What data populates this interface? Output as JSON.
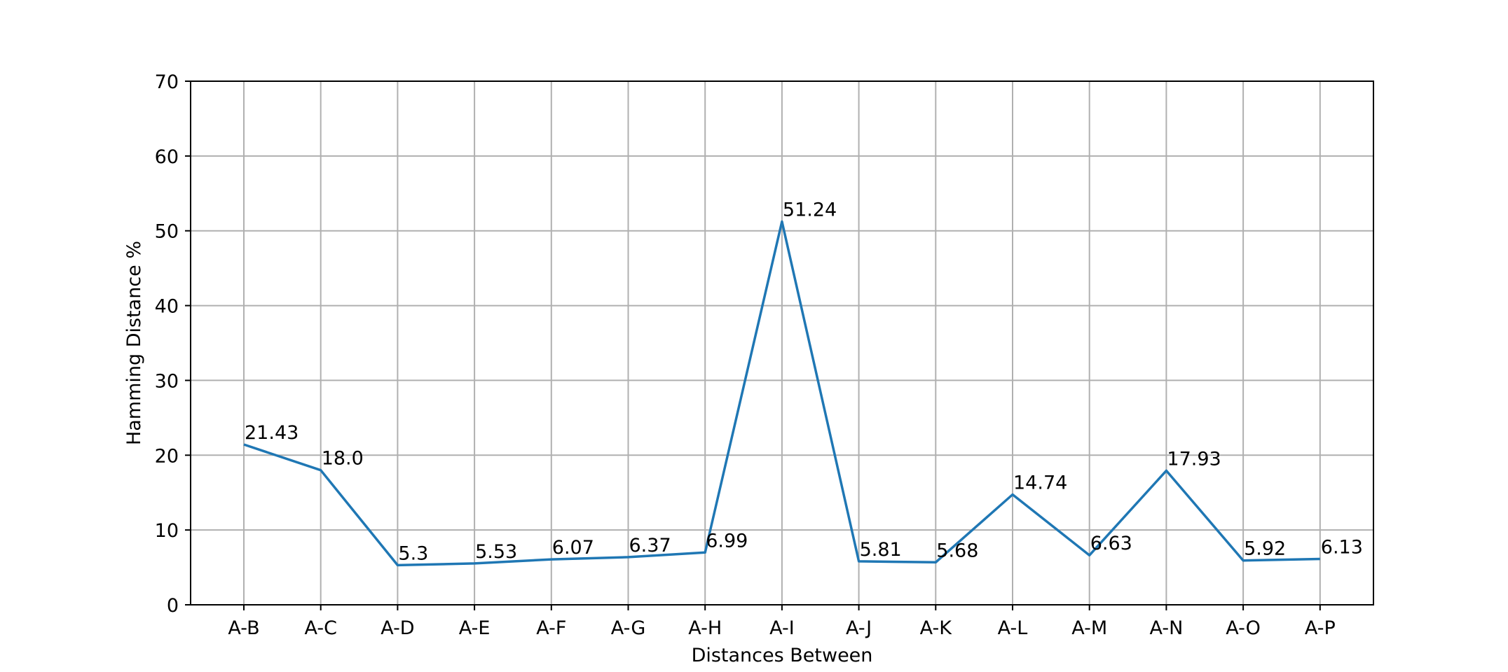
{
  "chart_data": {
    "type": "line",
    "title": "",
    "xlabel": "Distances Between",
    "ylabel": "Hamming Distance %",
    "categories": [
      "A-B",
      "A-C",
      "A-D",
      "A-E",
      "A-F",
      "A-G",
      "A-H",
      "A-I",
      "A-J",
      "A-K",
      "A-L",
      "A-M",
      "A-N",
      "A-O",
      "A-P"
    ],
    "series": [
      {
        "values": [
          21.43,
          18.0,
          5.3,
          5.53,
          6.07,
          6.37,
          6.99,
          51.24,
          5.81,
          5.68,
          14.74,
          6.63,
          17.93,
          5.92,
          6.13
        ],
        "labels": [
          "21.43",
          "18.0",
          "5.3",
          "5.53",
          "6.07",
          "6.37",
          "6.99",
          "51.24",
          "5.81",
          "5.68",
          "14.74",
          "6.63",
          "17.93",
          "5.92",
          "6.13"
        ],
        "color": "#1f77b4"
      }
    ],
    "ylim": [
      0,
      70
    ],
    "yticks": [
      "0",
      "10",
      "20",
      "30",
      "40",
      "50",
      "60",
      "70"
    ],
    "grid": true,
    "legend": "none"
  }
}
